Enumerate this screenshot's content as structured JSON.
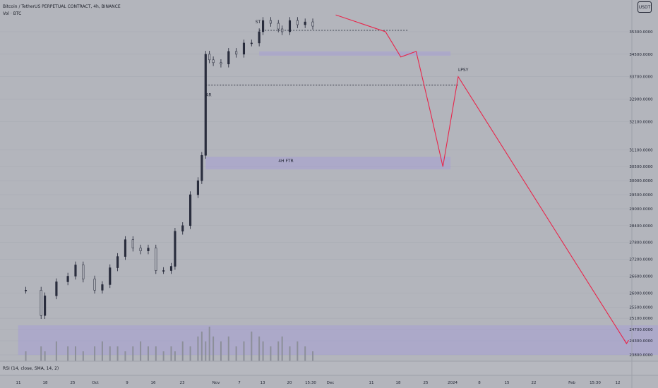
{
  "header": {
    "symbol_line": "Bitcoin / TetherUS PERPETUAL CONTRACT, 4h, BINANCE",
    "volume_line": "Vol · BTC",
    "rsi_line": "RSI (14, close, SMA, 14, 2)",
    "unit": "USDT"
  },
  "chart_data": {
    "type": "candlestick",
    "title": "Bitcoin / TetherUS PERPETUAL CONTRACT, 4h, BINANCE",
    "y_axis": {
      "ticks": [
        35300,
        34500,
        33700,
        32900,
        32100,
        31100,
        30500,
        30000,
        29500,
        29000,
        28400,
        27800,
        27200,
        26600,
        26000,
        25500,
        25100,
        24700,
        24300,
        23800
      ],
      "range": [
        23600,
        35700
      ]
    },
    "x_axis": {
      "ticks": [
        "11",
        "18",
        "25",
        "Oct",
        "9",
        "16",
        "23",
        "Nov",
        "7",
        "13",
        "20",
        "15:30",
        "Dec",
        "11",
        "18",
        "25",
        "2024",
        "8",
        "15",
        "22",
        "Feb",
        "15:30",
        "12"
      ]
    },
    "price_series": [
      [
        "2023-09-07",
        26100
      ],
      [
        "2023-09-11",
        25200
      ],
      [
        "2023-09-12",
        25900
      ],
      [
        "2023-09-15",
        26400
      ],
      [
        "2023-09-18",
        26600
      ],
      [
        "2023-09-20",
        27000
      ],
      [
        "2023-09-22",
        26500
      ],
      [
        "2023-09-25",
        26100
      ],
      [
        "2023-09-27",
        26300
      ],
      [
        "2023-09-29",
        26900
      ],
      [
        "2023-10-01",
        27300
      ],
      [
        "2023-10-03",
        27900
      ],
      [
        "2023-10-05",
        27600
      ],
      [
        "2023-10-07",
        27500
      ],
      [
        "2023-10-09",
        27600
      ],
      [
        "2023-10-11",
        26800
      ],
      [
        "2023-10-13",
        26800
      ],
      [
        "2023-10-15",
        26950
      ],
      [
        "2023-10-16",
        28200
      ],
      [
        "2023-10-18",
        28400
      ],
      [
        "2023-10-20",
        29500
      ],
      [
        "2023-10-22",
        30000
      ],
      [
        "2023-10-23",
        30900
      ],
      [
        "2023-10-24",
        34500
      ],
      [
        "2023-10-25",
        34300
      ],
      [
        "2023-10-26",
        34200
      ],
      [
        "2023-10-28",
        34150
      ],
      [
        "2023-10-30",
        34600
      ],
      [
        "2023-11-01",
        34500
      ],
      [
        "2023-11-03",
        34900
      ],
      [
        "2023-11-05",
        34900
      ],
      [
        "2023-11-07",
        35300
      ],
      [
        "2023-11-08",
        35700
      ],
      [
        "2023-11-10",
        35600
      ],
      [
        "2023-11-12",
        35400
      ],
      [
        "2023-11-13",
        35300
      ],
      [
        "2023-11-15",
        35700
      ],
      [
        "2023-11-17",
        35550
      ],
      [
        "2023-11-19",
        35650
      ],
      [
        "2023-11-21",
        35500
      ]
    ],
    "volume": [
      2,
      3,
      2,
      4,
      3,
      3,
      2,
      3,
      4,
      3,
      3,
      2,
      3,
      4,
      3,
      3,
      2,
      3,
      2,
      4,
      3,
      5,
      6,
      4,
      7,
      5,
      4,
      5,
      3,
      4,
      6,
      5,
      4,
      3,
      4,
      5,
      3,
      4,
      3,
      2
    ],
    "annotations": [
      {
        "label": "ST",
        "date": "2023-11-06",
        "price": 35600
      },
      {
        "label": "AR",
        "date": "2023-10-24",
        "price": 33000
      },
      {
        "label": "LPSY",
        "date": "2023-12-29",
        "price": 33900
      },
      {
        "label": "4H FTR",
        "date": "2023-11-12",
        "price": 30650
      }
    ],
    "zones": [
      {
        "from": "2023-10-24",
        "to": "2023-12-27",
        "y_low": 30400,
        "y_high": 30850
      },
      {
        "from": "2023-11-07",
        "to": "2023-12-27",
        "y_low": 34450,
        "y_high": 34600
      },
      {
        "from": "2023-09-05",
        "to": "2024-03-07",
        "y_low": 23800,
        "y_high": 24850
      }
    ],
    "levels": [
      {
        "price": 35350,
        "from": "2023-11-07",
        "to": "2023-12-16"
      },
      {
        "price": 33400,
        "from": "2023-10-24",
        "to": "2023-12-29"
      }
    ],
    "projection": [
      [
        "2023-11-27",
        35900
      ],
      [
        "2023-12-10",
        35300
      ],
      [
        "2023-12-14",
        34400
      ],
      [
        "2023-12-18",
        34600
      ],
      [
        "2023-12-22",
        32300
      ],
      [
        "2023-12-25",
        30500
      ],
      [
        "2023-12-29",
        33700
      ],
      [
        "2024-02-11",
        24200
      ]
    ],
    "grid": true
  }
}
